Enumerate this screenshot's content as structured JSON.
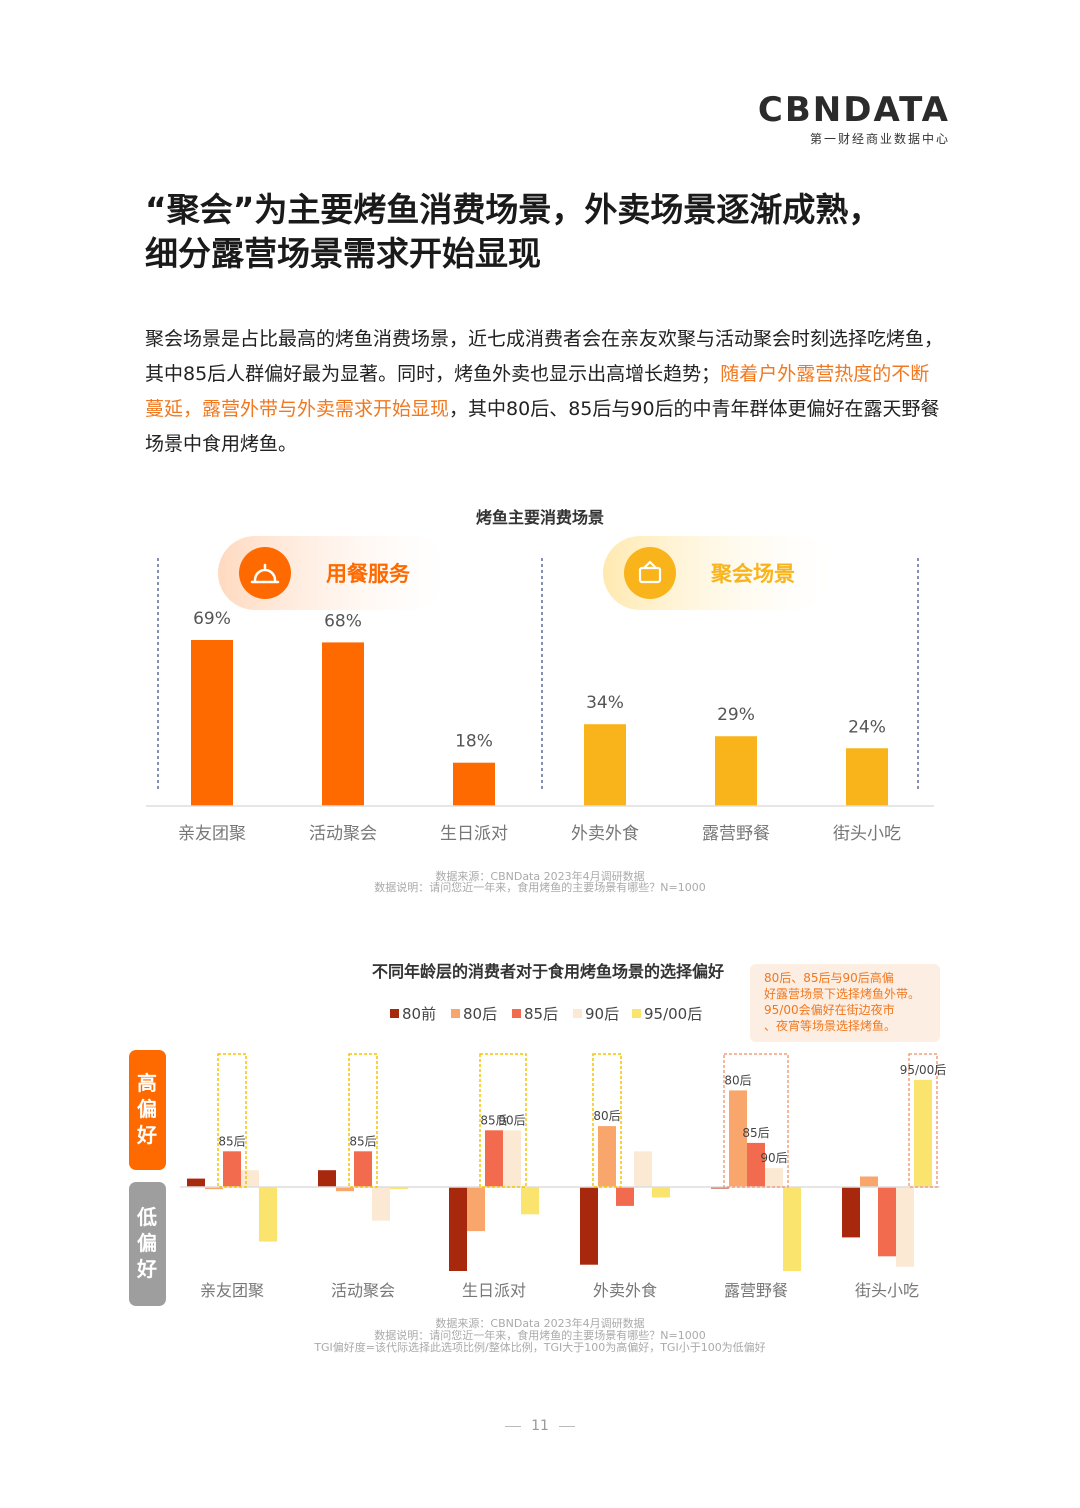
{
  "header": {
    "logo_text": "CBNDATA",
    "logo_subtitle": "第一财经商业数据中心"
  },
  "page_title_line1": "“聚会”为主要烤鱼消费场景，外卖场景逐渐成熟，",
  "page_title_line2": "细分露营场景需求开始显现",
  "body_text": {
    "part1": "聚会场景是占比最高的烤鱼消费场景，近七成消费者会在亲友欢聚与活动聚会时刻选择吃烤鱼，其中85后人群偏好最为显著。同时，烤鱼外卖也显示出高增长趋势；",
    "highlight": "随着户外露营热度的不断蔓延，露营外带与外卖需求开始显现",
    "part2": "，其中80后、85后与90后的中青年群体更偏好在露天野餐场景中食用烤鱼。"
  },
  "colors": {
    "orange": "#ff6a00",
    "yellow": "#f8b41a",
    "c80qian": "#a8280e",
    "c80": "#f8a66c",
    "c85": "#f26b4f",
    "c90": "#fbe9d3",
    "c95": "#fbe46e"
  },
  "chart_data": [
    {
      "type": "bar",
      "title": "烤鱼主要消费场景",
      "group_labels": [
        "用餐服务",
        "聚会场景"
      ],
      "categories": [
        "亲友团聚",
        "活动聚会",
        "生日派对",
        "外卖外食",
        "露营野餐",
        "街头小吃"
      ],
      "values": [
        69,
        68,
        18,
        34,
        29,
        24
      ],
      "value_labels": [
        "69%",
        "68%",
        "18%",
        "34%",
        "29%",
        "24%"
      ],
      "groups": [
        0,
        0,
        0,
        1,
        1,
        1
      ],
      "source": "数据来源：CBNData 2023年4月调研数据",
      "note": "数据说明：请问您近一年来，食用烤鱼的主要场景有哪些？N=1000",
      "ylim": [
        0,
        75
      ]
    },
    {
      "type": "bar",
      "title": "不同年龄层的消费者对于食用烤鱼场景的选择偏好",
      "categories": [
        "亲友团聚",
        "活动聚会",
        "生日派对",
        "外卖外食",
        "露营野餐",
        "街头小吃"
      ],
      "series": [
        {
          "name": "80前",
          "values": [
            4,
            8,
            -40,
            -37,
            0,
            -24
          ]
        },
        {
          "name": "80后",
          "values": [
            -1,
            -2,
            -21,
            29,
            46,
            5
          ]
        },
        {
          "name": "85后",
          "values": [
            17,
            17,
            27,
            -9,
            21,
            -33
          ]
        },
        {
          "name": "90后",
          "values": [
            8,
            -16,
            27,
            17,
            9,
            -38
          ]
        },
        {
          "name": "95/00后",
          "values": [
            -26,
            -1,
            -13,
            -5,
            -40,
            51
          ]
        }
      ],
      "highlight_boxes": [
        {
          "category": 0,
          "from": 2,
          "to": 2,
          "labels": [
            "85后"
          ]
        },
        {
          "category": 1,
          "from": 2,
          "to": 2,
          "labels": [
            "85后"
          ]
        },
        {
          "category": 2,
          "from": 2,
          "to": 3,
          "labels": [
            "85后",
            "90后"
          ]
        },
        {
          "category": 3,
          "from": 1,
          "to": 1,
          "labels": [
            "80后"
          ]
        },
        {
          "category": 4,
          "from": 1,
          "to": 3,
          "labels": [
            "80后",
            "85后",
            "90后"
          ]
        },
        {
          "category": 5,
          "from": 4,
          "to": 4,
          "labels": [
            "95/00后"
          ]
        }
      ],
      "side_labels": {
        "high": "高偏好",
        "low": "低偏好"
      },
      "callout": "80后、85后与90后高偏好露营场景下选择烤鱼外带。95/00会偏好在街边夜市、夜宵等场景选择烤鱼。",
      "source": "数据来源：CBNData 2023年4月调研数据",
      "note": "数据说明：请问您近一年来，食用烤鱼的主要场景有哪些？N=1000",
      "note2": "TGI偏好度=该代际选择此选项比例/整体比例，TGI大于100为高偏好，TGI小于100为低偏好",
      "ylim": [
        -55,
        60
      ]
    }
  ],
  "footer": {
    "page_number": "11"
  }
}
